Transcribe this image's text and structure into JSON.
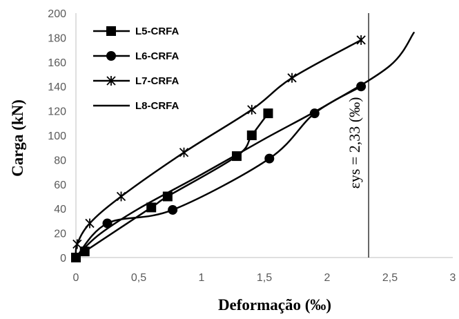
{
  "chart_data": {
    "type": "line",
    "xlabel": "Deformação (‰)",
    "ylabel": "Carga (kN)",
    "xlim": [
      0,
      3
    ],
    "ylim": [
      0,
      200
    ],
    "x_ticks": [
      "0",
      "0,5",
      "1",
      "1,5",
      "2",
      "2,5",
      "3"
    ],
    "y_ticks": [
      "0",
      "20",
      "40",
      "60",
      "80",
      "100",
      "120",
      "140",
      "160",
      "180",
      "200"
    ],
    "grid": false,
    "legend_position": "top-left",
    "series": [
      {
        "name": "L5-CRFA",
        "marker": "square",
        "x": [
          0.0,
          0.07,
          0.6,
          0.73,
          1.28,
          1.4,
          1.53
        ],
        "y": [
          0,
          5,
          41,
          50,
          83,
          100,
          118
        ]
      },
      {
        "name": "L6-CRFA",
        "marker": "circle",
        "x": [
          0.0,
          0.25,
          0.77,
          1.54,
          1.9,
          2.27
        ],
        "y": [
          0,
          28,
          39,
          81,
          118,
          140
        ]
      },
      {
        "name": "L7-CRFA",
        "marker": "asterisk",
        "x": [
          0.0,
          0.01,
          0.11,
          0.36,
          0.86,
          1.4,
          1.72,
          2.27
        ],
        "y": [
          0,
          11,
          28,
          50,
          86,
          121,
          147,
          178
        ]
      },
      {
        "name": "L8-CRFA",
        "marker": "none",
        "x": [
          0.0,
          0.05,
          0.2,
          0.5,
          1.0,
          1.5,
          2.0,
          2.5,
          2.69
        ],
        "y": [
          0,
          6,
          20,
          40,
          68,
          97,
          125,
          157,
          184
        ]
      }
    ],
    "annotations": [
      {
        "type": "vline",
        "x": 2.33,
        "label": "εys = 2,33 (‰)"
      }
    ]
  }
}
